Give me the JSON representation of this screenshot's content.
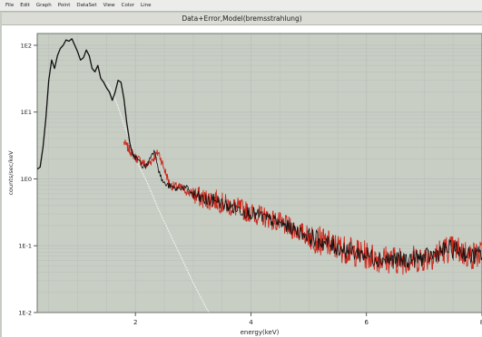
{
  "menu": [
    "File",
    "Edit",
    "Graph",
    "Point",
    "DataSet",
    "View",
    "Color",
    "Line"
  ],
  "window_title": "Data+Error,Model(bremsstrahlung)",
  "colors": {
    "data": "#cc2a1e",
    "model": "#111111",
    "extrapolation": "#f2f2f2",
    "grid": "#b9c2bb",
    "plot_background": "#c8cec4",
    "page_background": "#ffffff"
  },
  "chart_data": {
    "type": "line",
    "xlabel": "energy(keV)",
    "ylabel": "counts/sec/keV",
    "xscale": "linear",
    "yscale": "log",
    "xlim": [
      0.3,
      8.0
    ],
    "ylim": [
      0.01,
      150
    ],
    "x_ticks": [
      2,
      4,
      6,
      8
    ],
    "x_tick_labels": [
      "2",
      "4",
      "6",
      "8"
    ],
    "y_ticks": [
      0.01,
      0.1,
      1,
      10,
      100
    ],
    "y_tick_labels": [
      "1E-2",
      "1E-1",
      "1E0",
      "1E1",
      "1E2"
    ],
    "grid": true,
    "model": {
      "x": [
        0.3,
        0.35,
        0.4,
        0.45,
        0.5,
        0.55,
        0.6,
        0.65,
        0.7,
        0.75,
        0.8,
        0.85,
        0.9,
        0.95,
        1.0,
        1.05,
        1.1,
        1.15,
        1.2,
        1.25,
        1.3,
        1.35,
        1.4,
        1.45,
        1.5,
        1.55,
        1.6,
        1.65,
        1.7,
        1.75,
        1.8,
        1.85,
        1.9,
        1.95,
        2.0,
        2.05,
        2.1,
        2.15,
        2.2,
        2.25,
        2.3,
        2.35,
        2.4,
        2.45,
        2.5,
        2.55,
        2.6,
        2.7,
        2.8,
        2.9,
        3.0,
        3.1,
        3.2,
        3.3,
        3.4,
        3.5,
        3.7,
        4.0,
        4.3,
        4.6,
        5.0,
        5.4,
        5.8,
        6.2,
        6.6,
        7.0,
        7.2,
        7.4,
        7.6,
        7.8,
        8.0
      ],
      "y": [
        1.4,
        1.5,
        3,
        8,
        30,
        60,
        45,
        70,
        90,
        100,
        120,
        115,
        125,
        100,
        80,
        60,
        65,
        85,
        70,
        45,
        40,
        50,
        32,
        28,
        23,
        20,
        15,
        20,
        30,
        28,
        16,
        7,
        3.6,
        2.3,
        2.1,
        1.9,
        1.65,
        1.5,
        1.6,
        2.0,
        2.6,
        2.4,
        1.4,
        1.0,
        0.85,
        0.8,
        0.78,
        0.7,
        0.75,
        0.72,
        0.58,
        0.52,
        0.48,
        0.46,
        0.5,
        0.42,
        0.37,
        0.31,
        0.25,
        0.2,
        0.14,
        0.1,
        0.08,
        0.065,
        0.06,
        0.066,
        0.075,
        0.09,
        0.085,
        0.07,
        0.075
      ]
    },
    "data": {
      "x": [
        1.8,
        2.0,
        2.2,
        2.4,
        2.6,
        2.8,
        3.0,
        3.2,
        3.4,
        3.6,
        3.8,
        4.0,
        4.3,
        4.6,
        5.0,
        5.4,
        5.8,
        6.2,
        6.6,
        7.0,
        7.2,
        7.4,
        7.6,
        7.8,
        8.0
      ],
      "y": [
        3.5,
        2.1,
        1.6,
        2.5,
        0.8,
        0.73,
        0.58,
        0.5,
        0.48,
        0.4,
        0.36,
        0.31,
        0.26,
        0.2,
        0.14,
        0.1,
        0.08,
        0.065,
        0.06,
        0.066,
        0.075,
        0.09,
        0.085,
        0.07,
        0.075
      ]
    },
    "extrapolation": {
      "x": [
        1.5,
        1.6,
        1.7,
        1.8,
        1.9,
        2.0,
        2.2,
        2.4,
        2.6,
        2.8,
        3.0,
        3.2,
        3.3
      ],
      "y": [
        28,
        20,
        12,
        6.5,
        3.8,
        2.0,
        0.9,
        0.35,
        0.15,
        0.065,
        0.028,
        0.013,
        0.009
      ]
    }
  }
}
